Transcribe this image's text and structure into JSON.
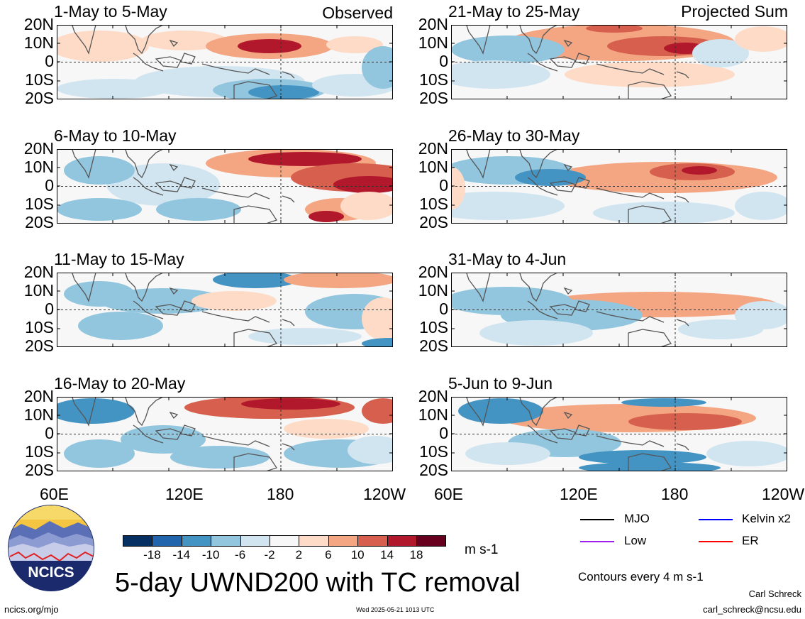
{
  "title": "5-day UWND200 with TC removal",
  "observed_label": "Observed",
  "projected_label": "Projected Sum",
  "latitude_labels": [
    "20N",
    "10N",
    "0",
    "10S",
    "20S"
  ],
  "longitude_labels": [
    "60E",
    "120E",
    "180",
    "120W"
  ],
  "panels_left": [
    {
      "title": "1-May to 5-May"
    },
    {
      "title": "6-May to 10-May"
    },
    {
      "title": "11-May to 15-May"
    },
    {
      "title": "16-May to 20-May"
    }
  ],
  "panels_right": [
    {
      "title": "21-May to 25-May"
    },
    {
      "title": "26-May to 30-May"
    },
    {
      "title": "31-May to 4-Jun"
    },
    {
      "title": "5-Jun to 9-Jun"
    }
  ],
  "colorbar": {
    "units": "m s-1",
    "ticks": [
      "-18",
      "-14",
      "-10",
      "-6",
      "-2",
      "2",
      "6",
      "10",
      "14",
      "18"
    ],
    "colors": [
      "#053061",
      "#2166ac",
      "#4393c3",
      "#92c5de",
      "#d1e5f0",
      "#f7f7f7",
      "#fddbc7",
      "#f4a582",
      "#d6604d",
      "#b2182b",
      "#67001f"
    ]
  },
  "legend": {
    "mjo": "MJO",
    "kelvin": "Kelvin x2",
    "low": "Low",
    "er": "ER",
    "colors": {
      "mjo": "#000000",
      "kelvin": "#0000ff",
      "low": "#a020f0",
      "er": "#ff0000"
    }
  },
  "contours_note": "Contours every 4 m s-1",
  "footer": {
    "url": "ncics.org/mjo",
    "timestamp": "Wed 2025-05-21 1013 UTC",
    "author": "Carl Schreck",
    "email": "carl_schreck@ncsu.edu"
  },
  "logo_text": "NCICS"
}
